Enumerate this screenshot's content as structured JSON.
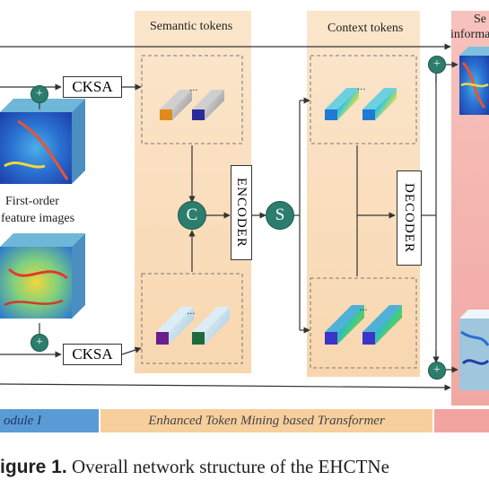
{
  "labels": {
    "semantic_tokens": "Semantic tokens",
    "context_tokens": "Context tokens",
    "right_title_line1": "Se",
    "right_title_line2": "informa",
    "first_order_line1": "First-order",
    "first_order_line2": "feature images",
    "cksa_top": "CKSA",
    "cksa_bottom": "CKSA",
    "encoder": "ENCODER",
    "decoder": "DECODER",
    "concat_symbol": "C",
    "split_symbol": "S",
    "plus_symbol": "+",
    "ellipsis": "..."
  },
  "bands": {
    "module_left": "odule I",
    "module_middle": "Enhanced Token Mining based Transformer"
  },
  "caption": {
    "prefix": "igure 1.",
    "text": " Overall network structure of the EHCTNe"
  },
  "colors": {
    "band_orange": "#f7cf9c",
    "band_blue": "#5b9bd5",
    "band_red": "#f2a4a0",
    "teal": "#2c7d6e"
  }
}
